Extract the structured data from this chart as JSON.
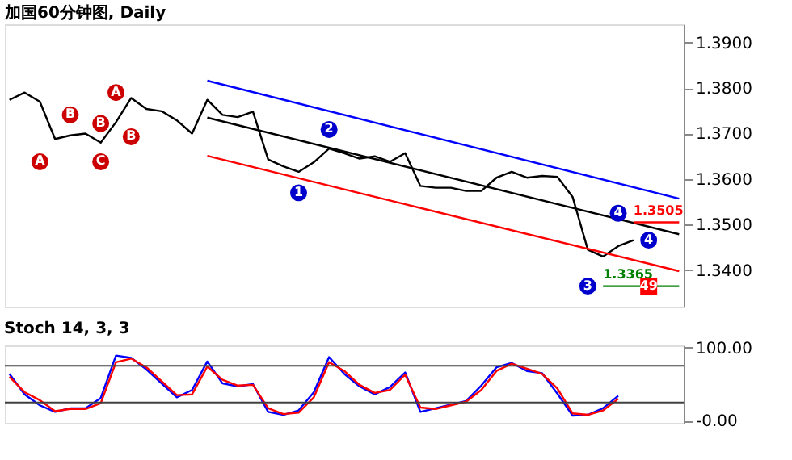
{
  "chart_data": [
    {
      "type": "line",
      "title": "加国60分钟图, Daily",
      "categories": [
        null,
        null,
        null,
        null,
        null,
        null,
        null,
        null,
        null,
        null,
        null,
        null,
        null,
        null,
        null,
        null,
        null,
        null,
        null,
        null,
        null,
        null,
        null,
        null,
        null,
        null,
        null,
        null,
        null,
        null,
        null,
        null,
        null,
        null,
        null,
        null,
        null,
        null,
        null,
        null,
        null,
        null,
        null,
        null,
        null
      ],
      "ylim": [
        1.332,
        1.394
      ],
      "yticks": [
        {
          "value": 1.34,
          "label": "1.3400"
        },
        {
          "value": 1.35,
          "label": "1.3500"
        },
        {
          "value": 1.36,
          "label": "1.3600"
        },
        {
          "value": 1.37,
          "label": "1.3700"
        },
        {
          "value": 1.38,
          "label": "1.3800"
        },
        {
          "value": 1.39,
          "label": "1.3900"
        }
      ],
      "tick_labels": "y",
      "grid": false,
      "marker": "none",
      "series": [
        {
          "color": "#000000",
          "values": [
            1.3774,
            1.379,
            1.377,
            1.3688,
            1.3696,
            1.37,
            1.368,
            1.3725,
            1.3778,
            1.3754,
            1.3749,
            1.3729,
            1.37,
            1.3774,
            1.3741,
            1.3736,
            1.3748,
            1.3643,
            1.3628,
            1.3616,
            1.3637,
            1.3667,
            1.3657,
            1.3645,
            1.365,
            1.3638,
            1.3657,
            1.3585,
            1.3581,
            1.3581,
            1.3574,
            1.3574,
            1.3603,
            1.3616,
            1.3603,
            1.3607,
            1.3605,
            1.3561,
            1.3445,
            1.343,
            1.3453,
            1.3466,
            null,
            null,
            null
          ]
        },
        {
          "color": "#0000ff",
          "values": [
            null,
            null,
            null,
            null,
            null,
            null,
            null,
            null,
            null,
            null,
            null,
            null,
            null,
            1.3816,
            null,
            null,
            null,
            null,
            null,
            null,
            null,
            null,
            null,
            null,
            null,
            null,
            null,
            null,
            null,
            null,
            null,
            null,
            null,
            null,
            null,
            null,
            null,
            null,
            null,
            null,
            null,
            null,
            null,
            null,
            1.3557
          ]
        },
        {
          "color": "#000000",
          "values": [
            null,
            null,
            null,
            null,
            null,
            null,
            null,
            null,
            null,
            null,
            null,
            null,
            null,
            1.3735,
            null,
            null,
            null,
            null,
            null,
            null,
            null,
            null,
            null,
            null,
            null,
            null,
            null,
            null,
            null,
            null,
            null,
            null,
            null,
            null,
            null,
            null,
            null,
            null,
            null,
            null,
            null,
            null,
            null,
            null,
            1.3479
          ]
        },
        {
          "color": "#ff0000",
          "values": [
            null,
            null,
            null,
            null,
            null,
            null,
            null,
            null,
            null,
            null,
            null,
            null,
            null,
            1.3651,
            null,
            null,
            null,
            null,
            null,
            null,
            null,
            null,
            null,
            null,
            null,
            null,
            null,
            null,
            null,
            null,
            null,
            null,
            null,
            null,
            null,
            null,
            null,
            null,
            null,
            null,
            null,
            null,
            null,
            null,
            1.3398
          ]
        },
        {
          "color": "#008000",
          "values": [
            null,
            null,
            null,
            null,
            null,
            null,
            null,
            null,
            null,
            null,
            null,
            null,
            null,
            null,
            null,
            null,
            null,
            null,
            null,
            null,
            null,
            null,
            null,
            null,
            null,
            null,
            null,
            null,
            null,
            null,
            null,
            null,
            null,
            null,
            null,
            null,
            null,
            null,
            null,
            1.3365,
            null,
            null,
            null,
            null,
            1.3365
          ],
          "value_labels": [
            null,
            null,
            null,
            null,
            null,
            null,
            null,
            null,
            null,
            null,
            null,
            null,
            null,
            null,
            null,
            null,
            null,
            null,
            null,
            null,
            null,
            null,
            null,
            null,
            null,
            null,
            null,
            null,
            null,
            null,
            null,
            null,
            null,
            null,
            null,
            null,
            null,
            null,
            null,
            "1.3365",
            null,
            null,
            null,
            null,
            null
          ]
        },
        {
          "color": "#ff0000",
          "values": [
            null,
            null,
            null,
            null,
            null,
            null,
            null,
            null,
            null,
            null,
            null,
            null,
            null,
            null,
            null,
            null,
            null,
            null,
            null,
            null,
            null,
            null,
            null,
            null,
            null,
            null,
            null,
            null,
            null,
            null,
            null,
            null,
            null,
            null,
            null,
            null,
            null,
            null,
            null,
            null,
            null,
            1.3505,
            null,
            null,
            1.3505
          ],
          "value_labels": [
            null,
            null,
            null,
            null,
            null,
            null,
            null,
            null,
            null,
            null,
            null,
            null,
            null,
            null,
            null,
            null,
            null,
            null,
            null,
            null,
            null,
            null,
            null,
            null,
            null,
            null,
            null,
            null,
            null,
            null,
            null,
            null,
            null,
            null,
            null,
            null,
            null,
            null,
            null,
            null,
            null,
            "1.3505",
            null,
            null,
            null
          ]
        },
        {
          "type": "scatter",
          "name": "A",
          "marker": "circle",
          "color": "#cc0000",
          "values": [
            null,
            null,
            1.3638,
            null,
            null,
            null,
            null,
            null,
            null,
            null,
            null,
            null,
            null,
            null,
            null,
            null,
            null,
            null,
            null,
            null,
            null,
            null,
            null,
            null,
            null,
            null,
            null,
            null,
            null,
            null,
            null,
            null,
            null,
            null,
            null,
            null,
            null,
            null,
            null,
            null,
            null,
            null,
            null,
            null,
            null
          ]
        },
        {
          "type": "scatter",
          "name": "B",
          "marker": "circle",
          "color": "#cc0000",
          "values": [
            null,
            null,
            null,
            null,
            1.3741,
            null,
            null,
            null,
            null,
            null,
            null,
            null,
            null,
            null,
            null,
            null,
            null,
            null,
            null,
            null,
            null,
            null,
            null,
            null,
            null,
            null,
            null,
            null,
            null,
            null,
            null,
            null,
            null,
            null,
            null,
            null,
            null,
            null,
            null,
            null,
            null,
            null,
            null,
            null,
            null
          ]
        },
        {
          "type": "scatter",
          "name": "C",
          "marker": "circle",
          "color": "#cc0000",
          "values": [
            null,
            null,
            null,
            null,
            null,
            null,
            1.3638,
            null,
            null,
            null,
            null,
            null,
            null,
            null,
            null,
            null,
            null,
            null,
            null,
            null,
            null,
            null,
            null,
            null,
            null,
            null,
            null,
            null,
            null,
            null,
            null,
            null,
            null,
            null,
            null,
            null,
            null,
            null,
            null,
            null,
            null,
            null,
            null,
            null,
            null
          ]
        },
        {
          "type": "scatter",
          "name": "B",
          "marker": "circle",
          "color": "#cc0000",
          "values": [
            null,
            null,
            null,
            null,
            null,
            null,
            1.3722,
            null,
            null,
            null,
            null,
            null,
            null,
            null,
            null,
            null,
            null,
            null,
            null,
            null,
            null,
            null,
            null,
            null,
            null,
            null,
            null,
            null,
            null,
            null,
            null,
            null,
            null,
            null,
            null,
            null,
            null,
            null,
            null,
            null,
            null,
            null,
            null,
            null,
            null
          ]
        },
        {
          "type": "scatter",
          "name": "A",
          "marker": "circle",
          "color": "#cc0000",
          "values": [
            null,
            null,
            null,
            null,
            null,
            null,
            null,
            1.379,
            null,
            null,
            null,
            null,
            null,
            null,
            null,
            null,
            null,
            null,
            null,
            null,
            null,
            null,
            null,
            null,
            null,
            null,
            null,
            null,
            null,
            null,
            null,
            null,
            null,
            null,
            null,
            null,
            null,
            null,
            null,
            null,
            null,
            null,
            null,
            null,
            null
          ]
        },
        {
          "type": "scatter",
          "name": "B",
          "marker": "circle",
          "color": "#cc0000",
          "values": [
            null,
            null,
            null,
            null,
            null,
            null,
            null,
            null,
            1.3693,
            null,
            null,
            null,
            null,
            null,
            null,
            null,
            null,
            null,
            null,
            null,
            null,
            null,
            null,
            null,
            null,
            null,
            null,
            null,
            null,
            null,
            null,
            null,
            null,
            null,
            null,
            null,
            null,
            null,
            null,
            null,
            null,
            null,
            null,
            null,
            null
          ]
        },
        {
          "type": "scatter",
          "name": "1",
          "marker": "circle",
          "color": "#0000cc",
          "values": [
            null,
            null,
            null,
            null,
            null,
            null,
            null,
            null,
            null,
            null,
            null,
            null,
            null,
            null,
            null,
            null,
            null,
            null,
            null,
            1.357,
            null,
            null,
            null,
            null,
            null,
            null,
            null,
            null,
            null,
            null,
            null,
            null,
            null,
            null,
            null,
            null,
            null,
            null,
            null,
            null,
            null,
            null,
            null,
            null,
            null
          ]
        },
        {
          "type": "scatter",
          "name": "2",
          "marker": "circle",
          "color": "#0000cc",
          "values": [
            null,
            null,
            null,
            null,
            null,
            null,
            null,
            null,
            null,
            null,
            null,
            null,
            null,
            null,
            null,
            null,
            null,
            null,
            null,
            null,
            null,
            1.3709,
            null,
            null,
            null,
            null,
            null,
            null,
            null,
            null,
            null,
            null,
            null,
            null,
            null,
            null,
            null,
            null,
            null,
            null,
            null,
            null,
            null,
            null,
            null
          ]
        },
        {
          "type": "scatter",
          "name": "3",
          "marker": "circle",
          "color": "#0000cc",
          "values": [
            null,
            null,
            null,
            null,
            null,
            null,
            null,
            null,
            null,
            null,
            null,
            null,
            null,
            null,
            null,
            null,
            null,
            null,
            null,
            null,
            null,
            null,
            null,
            null,
            null,
            null,
            null,
            null,
            null,
            null,
            null,
            null,
            null,
            null,
            null,
            null,
            null,
            null,
            1.3365,
            null,
            null,
            null,
            null,
            null,
            null
          ]
        },
        {
          "type": "scatter",
          "name": "4",
          "marker": "circle",
          "color": "#0000cc",
          "values": [
            null,
            null,
            null,
            null,
            null,
            null,
            null,
            null,
            null,
            null,
            null,
            null,
            null,
            null,
            null,
            null,
            null,
            null,
            null,
            null,
            null,
            null,
            null,
            null,
            null,
            null,
            null,
            null,
            null,
            null,
            null,
            null,
            null,
            null,
            null,
            null,
            null,
            null,
            null,
            null,
            1.3525,
            null,
            null,
            null,
            null
          ]
        },
        {
          "type": "scatter",
          "name": "4",
          "marker": "circle",
          "color": "#0000cc",
          "values": [
            null,
            null,
            null,
            null,
            null,
            null,
            null,
            null,
            null,
            null,
            null,
            null,
            null,
            null,
            null,
            null,
            null,
            null,
            null,
            null,
            null,
            null,
            null,
            null,
            null,
            null,
            null,
            null,
            null,
            null,
            null,
            null,
            null,
            null,
            null,
            null,
            null,
            null,
            null,
            null,
            null,
            null,
            1.3466,
            null,
            null
          ]
        },
        {
          "type": "scatter",
          "name": "49",
          "marker": "square",
          "color": "#ff0000",
          "values": [
            null,
            null,
            null,
            null,
            null,
            null,
            null,
            null,
            null,
            null,
            null,
            null,
            null,
            null,
            null,
            null,
            null,
            null,
            null,
            null,
            null,
            null,
            null,
            null,
            null,
            null,
            null,
            null,
            null,
            null,
            null,
            null,
            null,
            null,
            null,
            null,
            null,
            null,
            null,
            null,
            null,
            null,
            1.3365,
            null,
            null
          ]
        }
      ]
    },
    {
      "type": "line",
      "title": "Stoch 14, 3, 3",
      "categories": [
        null,
        null,
        null,
        null,
        null,
        null,
        null,
        null,
        null,
        null,
        null,
        null,
        null,
        null,
        null,
        null,
        null,
        null,
        null,
        null,
        null,
        null,
        null,
        null,
        null,
        null,
        null,
        null,
        null,
        null,
        null,
        null,
        null,
        null,
        null,
        null,
        null,
        null,
        null,
        null,
        null,
        null,
        null,
        null,
        null
      ],
      "ylim": [
        -3,
        103
      ],
      "yticks": [
        {
          "value": 0,
          "label": "-0.00"
        },
        {
          "value": 100,
          "label": "100.00"
        }
      ],
      "tick_labels": "y",
      "grid": false,
      "marker": "none",
      "ref_lines": [
        {
          "axis": "y",
          "value": 75,
          "color": "#404040"
        },
        {
          "axis": "y",
          "value": 25,
          "color": "#404040"
        }
      ],
      "series": [
        {
          "color": "#0000ff",
          "values": [
            64,
            36,
            21,
            12,
            17,
            17,
            31,
            89,
            86,
            70,
            51,
            32,
            42,
            81,
            51,
            47,
            50,
            12,
            8,
            14,
            39,
            87,
            64,
            47,
            36,
            46,
            66,
            12,
            17,
            22,
            27,
            48,
            73,
            79,
            68,
            65,
            37,
            7,
            8,
            17,
            34,
            null,
            null,
            null,
            null
          ]
        },
        {
          "color": "#ff0000",
          "values": [
            60,
            39,
            28,
            13,
            16,
            16,
            24,
            80,
            85,
            73,
            54,
            35,
            36,
            74,
            56,
            48,
            49,
            17,
            9,
            11,
            32,
            80,
            68,
            49,
            38,
            42,
            63,
            18,
            16,
            21,
            26,
            42,
            68,
            78,
            71,
            64,
            44,
            10,
            8,
            14,
            30,
            null,
            null,
            null,
            null
          ]
        }
      ]
    }
  ]
}
